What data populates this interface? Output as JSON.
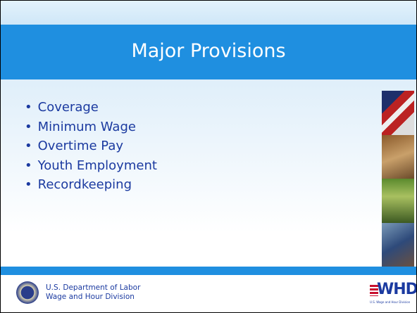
{
  "slide": {
    "title": "Major Provisions",
    "bullets": [
      "Coverage",
      "Minimum Wage",
      "Overtime Pay",
      "Youth Employment",
      "Recordkeeping"
    ],
    "footer": {
      "line1": "U.S. Department of Labor",
      "line2": "Wage and Hour Division"
    },
    "logo": {
      "text": "WHD",
      "caption": "U.S. Wage and Hour Division"
    }
  }
}
